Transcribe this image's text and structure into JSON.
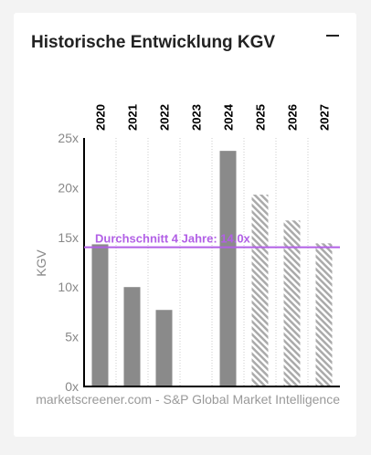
{
  "widget": {
    "title": "Historische Entwicklung KGV",
    "minimize_icon": "minus-icon"
  },
  "chart_data": {
    "type": "bar",
    "categories": [
      "2020",
      "2021",
      "2022",
      "2023",
      "2024",
      "2025",
      "2026",
      "2027"
    ],
    "values": [
      14.3,
      10.0,
      7.7,
      null,
      23.7,
      19.3,
      16.7,
      14.4
    ],
    "estimated": [
      false,
      false,
      false,
      false,
      false,
      true,
      true,
      true
    ],
    "ylabel": "KGV",
    "ylim": [
      0,
      25
    ],
    "y_ticks": [
      "0x",
      "5x",
      "10x",
      "15x",
      "20x",
      "25x"
    ],
    "y_tick_values": [
      0,
      5,
      10,
      15,
      20,
      25
    ],
    "average": {
      "value": 14.0,
      "label": "Durchschnitt 4 Jahre: 14.0x"
    },
    "credit": "marketscreener.com - S&P Global Market Intelligence",
    "colors": {
      "bar": "#8a8a8a",
      "estimate_hatch": "#aaaaaa",
      "average_line": "#b260e6",
      "grid": "#cccccc",
      "axis": "#000000"
    }
  }
}
